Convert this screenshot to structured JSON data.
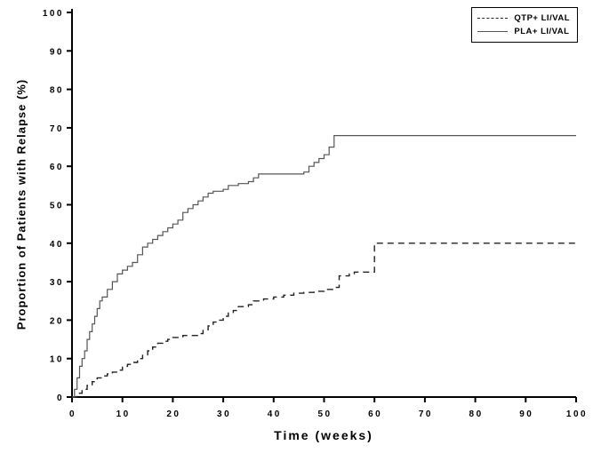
{
  "colors": {
    "axis": "#000000",
    "background": "#ffffff",
    "qtp_line": "#222222",
    "pla_line": "#555555"
  },
  "chart_data": {
    "type": "line",
    "subtype": "kaplan-meier-step",
    "title": "",
    "xlabel": "Time (weeks)",
    "ylabel": "Proportion of Patients with Relapse (%)",
    "xlim": [
      0,
      100
    ],
    "ylim": [
      0,
      100
    ],
    "xtick_step": 10,
    "ytick_step": 10,
    "grid": false,
    "legend_position": "top-right",
    "series": [
      {
        "name": "QTP+ LI/VAL",
        "style": "dashed",
        "color": "#222222",
        "width": 1.4,
        "points": [
          [
            0,
            0
          ],
          [
            1,
            1
          ],
          [
            2,
            2
          ],
          [
            3,
            3
          ],
          [
            4,
            4
          ],
          [
            5,
            5
          ],
          [
            6,
            5.5
          ],
          [
            7,
            6
          ],
          [
            8,
            6.5
          ],
          [
            9,
            7
          ],
          [
            10,
            8
          ],
          [
            11,
            8.5
          ],
          [
            12,
            9
          ],
          [
            13,
            10
          ],
          [
            14,
            11
          ],
          [
            15,
            12
          ],
          [
            16,
            13
          ],
          [
            17,
            14
          ],
          [
            18,
            14.5
          ],
          [
            19,
            15
          ],
          [
            20,
            15.5
          ],
          [
            22,
            16
          ],
          [
            25,
            16.5
          ],
          [
            26,
            17.5
          ],
          [
            27,
            18.5
          ],
          [
            28,
            19.5
          ],
          [
            29,
            20
          ],
          [
            30,
            21
          ],
          [
            31,
            22
          ],
          [
            32,
            22.5
          ],
          [
            33,
            23.5
          ],
          [
            35,
            24
          ],
          [
            36,
            25
          ],
          [
            38,
            25.5
          ],
          [
            40,
            26
          ],
          [
            42,
            26.5
          ],
          [
            44,
            27
          ],
          [
            46,
            27.2
          ],
          [
            48,
            27.5
          ],
          [
            50,
            28
          ],
          [
            52,
            28.5
          ],
          [
            53,
            31.5
          ],
          [
            55,
            32
          ],
          [
            56,
            32.5
          ],
          [
            60,
            40
          ],
          [
            100,
            40
          ]
        ]
      },
      {
        "name": "PLA+ LI/VAL",
        "style": "solid",
        "color": "#555555",
        "width": 1.2,
        "points": [
          [
            0,
            0
          ],
          [
            0.5,
            2
          ],
          [
            1,
            5
          ],
          [
            1.5,
            8
          ],
          [
            2,
            10
          ],
          [
            2.5,
            12
          ],
          [
            3,
            15
          ],
          [
            3.5,
            17
          ],
          [
            4,
            19
          ],
          [
            4.5,
            21
          ],
          [
            5,
            23
          ],
          [
            5.5,
            25
          ],
          [
            6,
            26
          ],
          [
            7,
            28
          ],
          [
            8,
            30
          ],
          [
            9,
            32
          ],
          [
            10,
            33
          ],
          [
            11,
            34
          ],
          [
            12,
            35
          ],
          [
            13,
            37
          ],
          [
            14,
            39
          ],
          [
            15,
            40
          ],
          [
            16,
            41
          ],
          [
            17,
            42
          ],
          [
            18,
            43
          ],
          [
            19,
            44
          ],
          [
            20,
            45
          ],
          [
            21,
            46
          ],
          [
            22,
            48
          ],
          [
            23,
            49
          ],
          [
            24,
            50
          ],
          [
            25,
            51
          ],
          [
            26,
            52
          ],
          [
            27,
            53
          ],
          [
            28,
            53.5
          ],
          [
            30,
            54
          ],
          [
            31,
            55
          ],
          [
            33,
            55.5
          ],
          [
            35,
            56
          ],
          [
            36,
            57
          ],
          [
            37,
            58
          ],
          [
            46,
            58.5
          ],
          [
            47,
            60
          ],
          [
            48,
            61
          ],
          [
            49,
            62
          ],
          [
            50,
            63
          ],
          [
            51,
            65
          ],
          [
            52,
            68
          ],
          [
            100,
            68
          ]
        ]
      }
    ]
  }
}
